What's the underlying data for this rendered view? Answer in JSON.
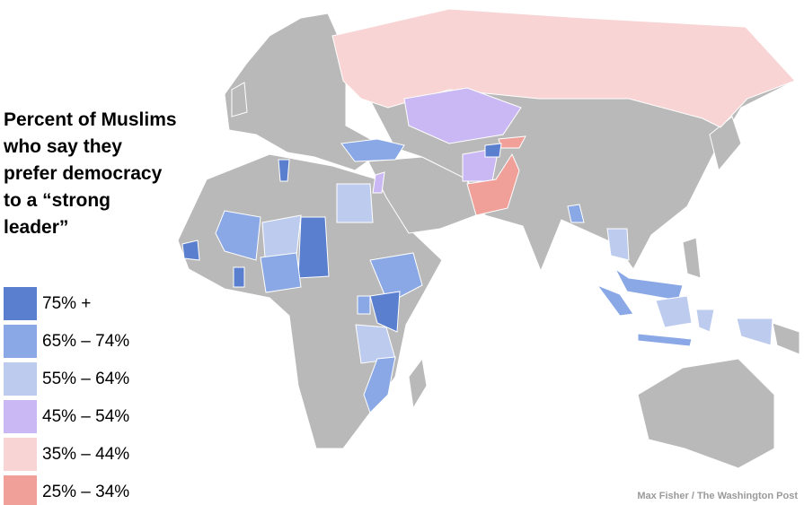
{
  "title_lines": [
    "Percent of Muslims",
    "who say they",
    "prefer democracy",
    "to a “strong",
    "leader”"
  ],
  "legend": [
    {
      "label": "75% +",
      "color": "#5b7fcf"
    },
    {
      "label": "65% – 74%",
      "color": "#8aa8e6"
    },
    {
      "label": "55% – 64%",
      "color": "#bccbee"
    },
    {
      "label": "45% – 54%",
      "color": "#c9b8f3"
    },
    {
      "label": "35% – 44%",
      "color": "#f8d4d4"
    },
    {
      "label": "25% – 34%",
      "color": "#f0a098"
    }
  ],
  "credit": "Max Fisher / The Washington Post"
}
